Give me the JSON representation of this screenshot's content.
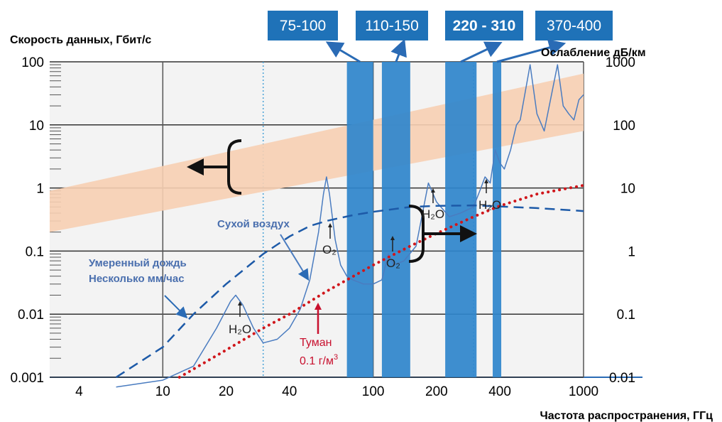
{
  "chart_data": {
    "type": "line",
    "x_scale": "log",
    "y_scale": "log",
    "xlabel": "Частота распространения, ГГц",
    "ylabel_left": "Скорость данных, Гбит/с",
    "ylabel_right": "Ослабление дБ/км",
    "x_ticks": [
      "4",
      "10",
      "20",
      "40",
      "100",
      "200",
      "400",
      "1000"
    ],
    "x_tick_values": [
      4,
      10,
      20,
      40,
      100,
      200,
      400,
      1000
    ],
    "y_left_ticks": [
      "100",
      "10",
      "1",
      "0.1",
      "0.01",
      "0.001"
    ],
    "y_left_tick_values": [
      100,
      10,
      1,
      0.1,
      0.01,
      0.001
    ],
    "y_right_ticks": [
      "1000",
      "100",
      "10",
      "1",
      "0.1",
      "0.01"
    ],
    "y_right_tick_values": [
      1000,
      100,
      10,
      1,
      0.1,
      0.01
    ],
    "xlim": [
      2.9,
      1000
    ],
    "ylim_left": [
      0.001,
      100
    ],
    "ylim_right": [
      0.01,
      1000
    ],
    "grid": true,
    "bands": [
      {
        "label": "75-100",
        "range": [
          75,
          100
        ]
      },
      {
        "label": "110-150",
        "range": [
          110,
          150
        ]
      },
      {
        "label": "220 - 310",
        "range": [
          220,
          310
        ]
      },
      {
        "label": "370-400",
        "range": [
          370,
          400
        ]
      }
    ],
    "data_rate_band": {
      "x": [
        2.9,
        1000
      ],
      "upper": [
        0.9,
        65
      ],
      "lower": [
        0.2,
        8
      ]
    },
    "series": [
      {
        "name": "Сухой воздух",
        "axis": "right",
        "style": "solid",
        "color": "#4a7cc0",
        "x": [
          6,
          10,
          14,
          18,
          21,
          22.2,
          24,
          27,
          30,
          35,
          40,
          45,
          50,
          55,
          58,
          60,
          62,
          66,
          70,
          75,
          80,
          90,
          100,
          110,
          118,
          125,
          140,
          160,
          183,
          200,
          230,
          260,
          300,
          325,
          340,
          360,
          380,
          400,
          420,
          450,
          480,
          500,
          557,
          600,
          650,
          752,
          800,
          850,
          900,
          950,
          1000
        ],
        "y": [
          0.007,
          0.009,
          0.015,
          0.06,
          0.16,
          0.2,
          0.14,
          0.06,
          0.035,
          0.04,
          0.06,
          0.12,
          0.35,
          2,
          8,
          15,
          8,
          1.5,
          0.6,
          0.4,
          0.35,
          0.3,
          0.3,
          0.35,
          0.9,
          0.6,
          0.7,
          1.2,
          12,
          6,
          3.5,
          4,
          5,
          10,
          15,
          12,
          40,
          25,
          20,
          40,
          100,
          120,
          900,
          150,
          80,
          900,
          200,
          150,
          120,
          250,
          300
        ]
      },
      {
        "name": "Умеренный дождь Несколько мм/час",
        "axis": "right",
        "style": "dashed",
        "color": "#1d5aa8",
        "x": [
          6,
          10,
          14,
          20,
          30,
          40,
          50,
          60,
          80,
          100,
          150,
          200,
          300,
          400,
          600,
          1000
        ],
        "y": [
          0.01,
          0.03,
          0.1,
          0.3,
          0.9,
          1.7,
          2.5,
          3,
          3.7,
          4.2,
          5,
          5.2,
          5.3,
          5.1,
          4.8,
          4.3
        ]
      },
      {
        "name": "Туман 0.1 г/м³",
        "axis": "right",
        "style": "dotted",
        "color": "#d0161b",
        "x": [
          12,
          20,
          30,
          40,
          60,
          100,
          150,
          200,
          300,
          400,
          600,
          1000
        ],
        "y": [
          0.01,
          0.027,
          0.06,
          0.1,
          0.23,
          0.6,
          1.2,
          1.9,
          3.5,
          5.2,
          8,
          11
        ]
      }
    ],
    "annotations": {
      "dry_air": "Сухой воздух",
      "rain_line1": "Умеренный дождь",
      "rain_line2": "Несколько мм/час",
      "fog_line1": "Туман",
      "fog_line2": "0.1 г/м",
      "fog_sup": "3",
      "h2o": "H₂O",
      "o2": "O₂"
    }
  }
}
